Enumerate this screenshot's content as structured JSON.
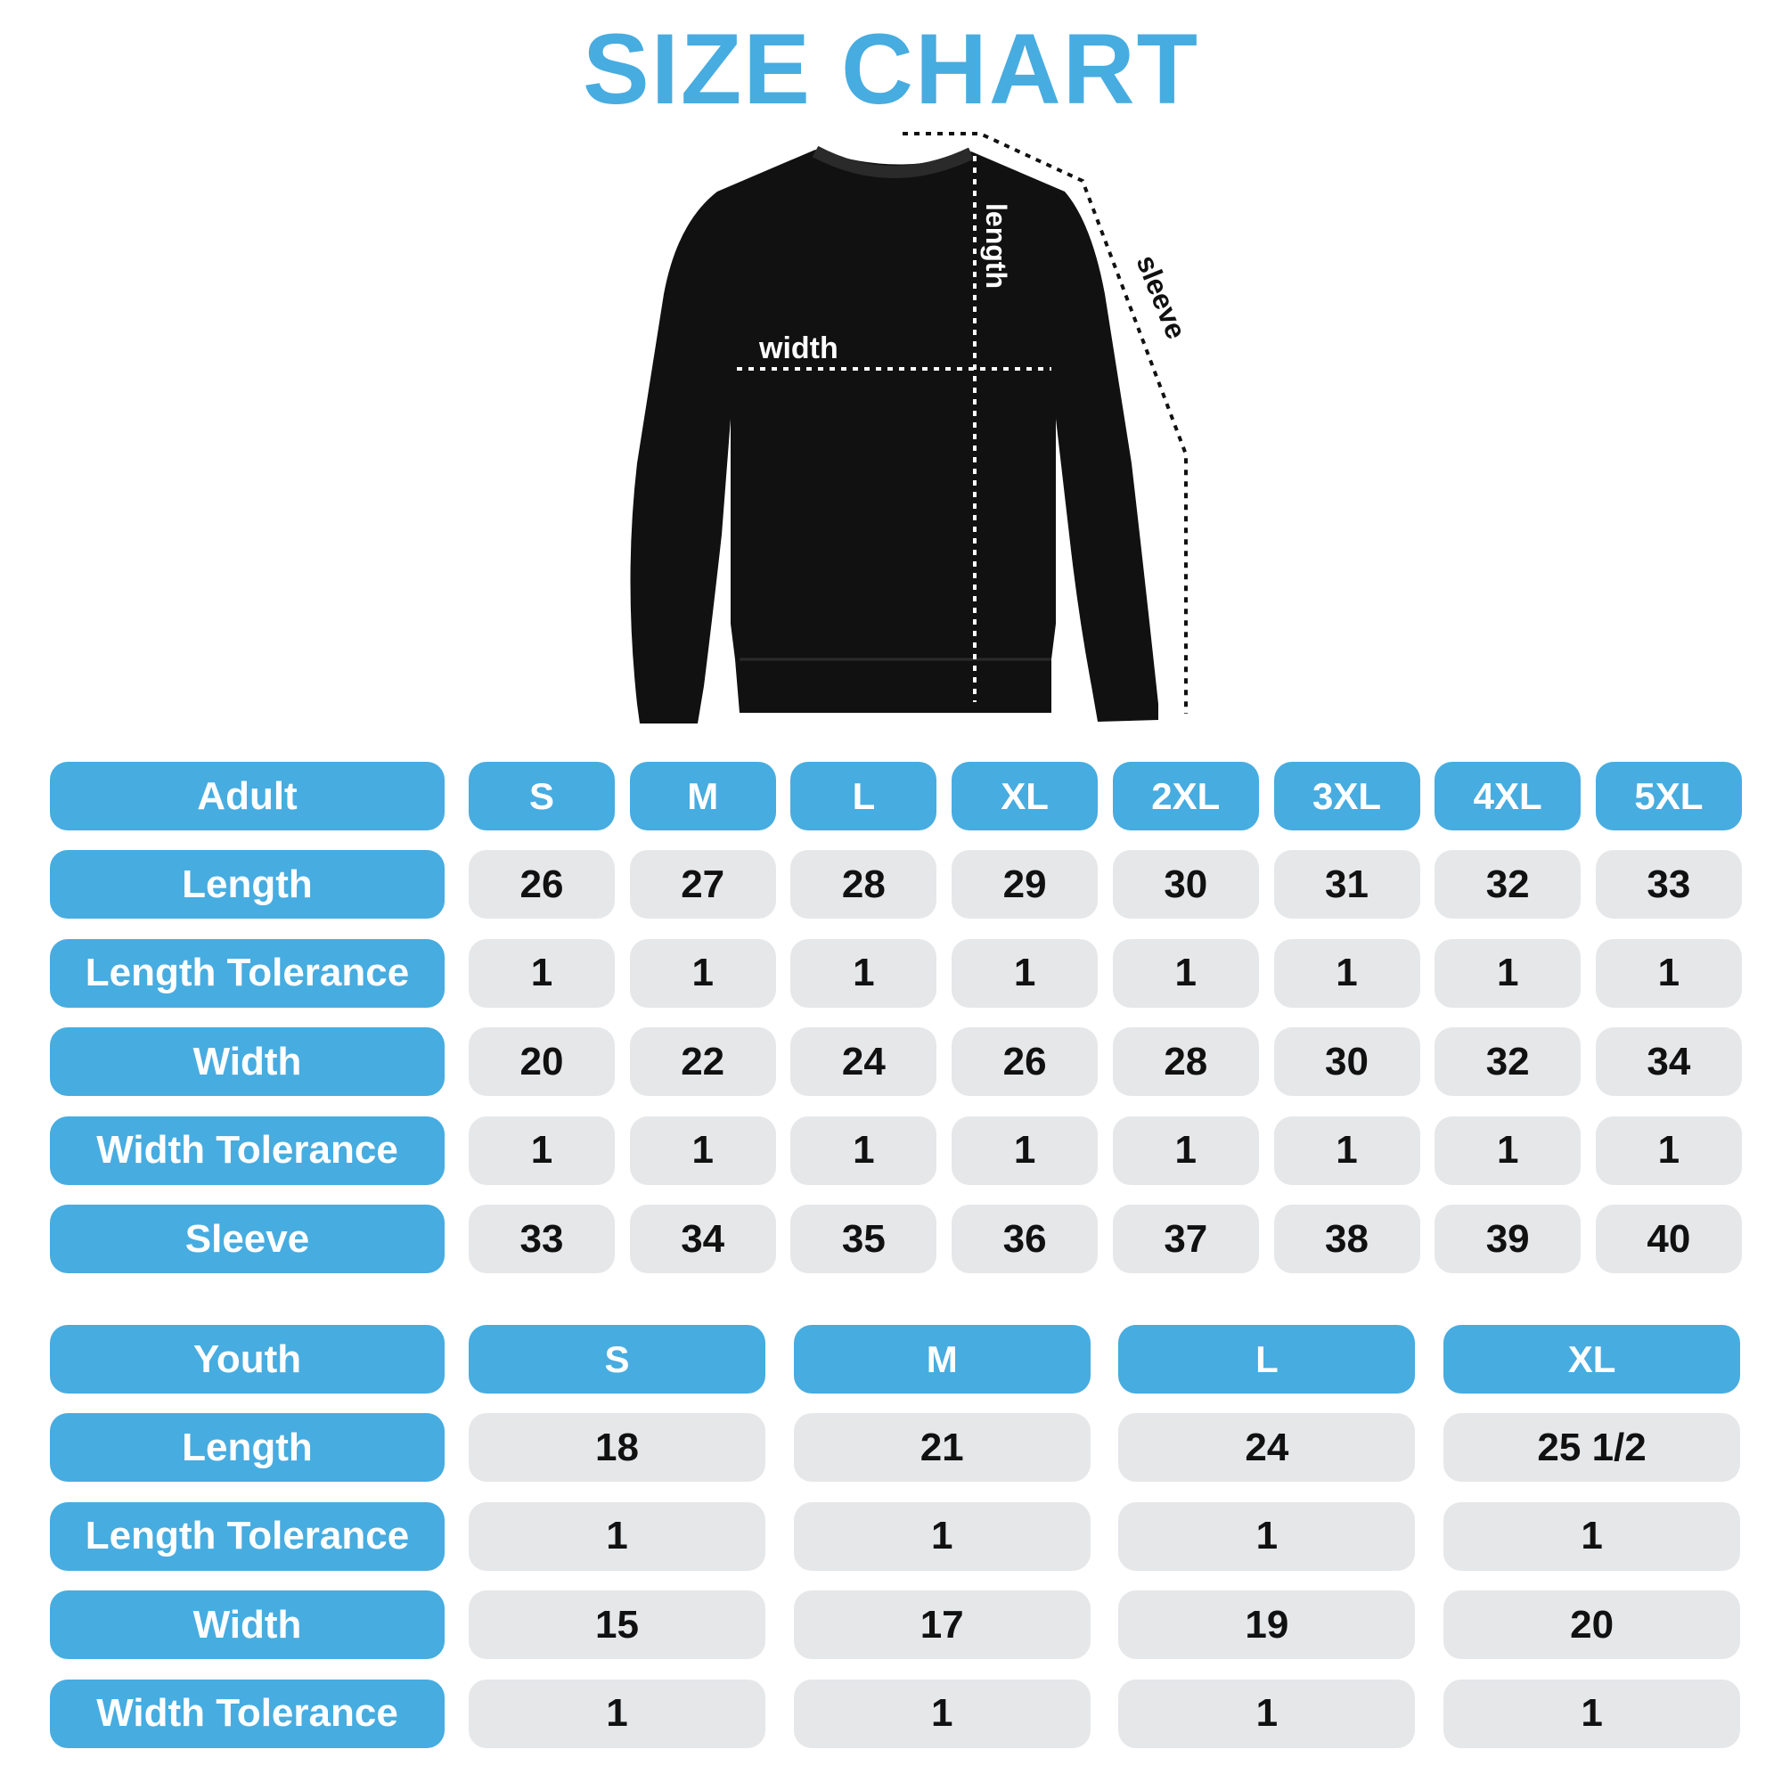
{
  "title": "SIZE CHART",
  "colors": {
    "accent": "#47ACE0",
    "cell": "#E6E7E9",
    "text": "#111111",
    "garment": "#111111"
  },
  "diagram": {
    "width_label": "width",
    "length_label": "length",
    "sleeve_label": "sleeve"
  },
  "adult": {
    "header": "Adult",
    "sizes": [
      "S",
      "M",
      "L",
      "XL",
      "2XL",
      "3XL",
      "4XL",
      "5XL"
    ],
    "rows": [
      {
        "label": "Length",
        "values": [
          "26",
          "27",
          "28",
          "29",
          "30",
          "31",
          "32",
          "33"
        ]
      },
      {
        "label": "Length Tolerance",
        "values": [
          "1",
          "1",
          "1",
          "1",
          "1",
          "1",
          "1",
          "1"
        ]
      },
      {
        "label": "Width",
        "values": [
          "20",
          "22",
          "24",
          "26",
          "28",
          "30",
          "32",
          "34"
        ]
      },
      {
        "label": "Width Tolerance",
        "values": [
          "1",
          "1",
          "1",
          "1",
          "1",
          "1",
          "1",
          "1"
        ]
      },
      {
        "label": "Sleeve",
        "values": [
          "33",
          "34",
          "35",
          "36",
          "37",
          "38",
          "39",
          "40"
        ]
      }
    ]
  },
  "youth": {
    "header": "Youth",
    "sizes": [
      "S",
      "M",
      "L",
      "XL"
    ],
    "rows": [
      {
        "label": "Length",
        "values": [
          "18",
          "21",
          "24",
          "25 1/2"
        ]
      },
      {
        "label": "Length Tolerance",
        "values": [
          "1",
          "1",
          "1",
          "1"
        ]
      },
      {
        "label": "Width",
        "values": [
          "15",
          "17",
          "19",
          "20"
        ]
      },
      {
        "label": "Width Tolerance",
        "values": [
          "1",
          "1",
          "1",
          "1"
        ]
      }
    ]
  }
}
